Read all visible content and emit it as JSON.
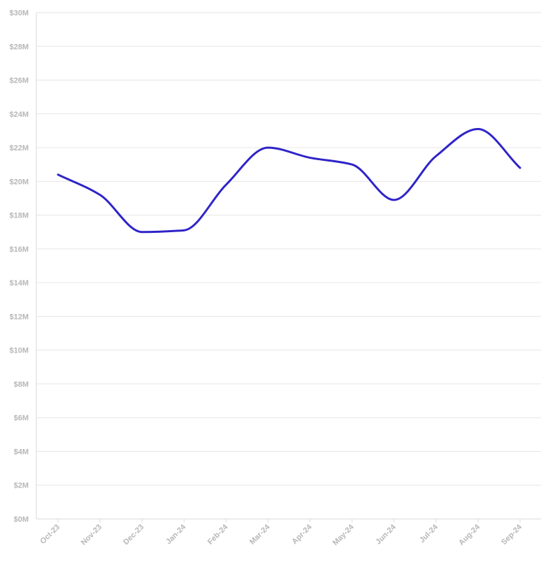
{
  "chart_data": {
    "type": "line",
    "title": "",
    "xlabel": "",
    "ylabel": "",
    "categories": [
      "Oct-23",
      "Nov-23",
      "Dec-23",
      "Jan-24",
      "Feb-24",
      "Mar-24",
      "Apr-24",
      "May-24",
      "Jun-24",
      "Jul-24",
      "Aug-24",
      "Sep-24"
    ],
    "series": [
      {
        "values": [
          20.4,
          19.2,
          17.0,
          17.1,
          19.8,
          22.0,
          21.4,
          21.0,
          18.9,
          21.5,
          23.1,
          20.8
        ],
        "color": "#2f24c8"
      }
    ],
    "ylim": [
      0,
      30
    ],
    "y_ticks": [
      0,
      2,
      4,
      6,
      8,
      10,
      12,
      14,
      16,
      18,
      20,
      22,
      24,
      26,
      28,
      30
    ],
    "y_tick_labels": [
      "$0M",
      "$2M",
      "$4M",
      "$6M",
      "$8M",
      "$10M",
      "$12M",
      "$14M",
      "$16M",
      "$18M",
      "$20M",
      "$22M",
      "$24M",
      "$26M",
      "$28M",
      "$30M"
    ],
    "grid": true,
    "legend": "none",
    "colors": {
      "grid": "#e6e6e6",
      "axis": "#d9d9d9",
      "tick_text": "#b7b7b7"
    }
  }
}
